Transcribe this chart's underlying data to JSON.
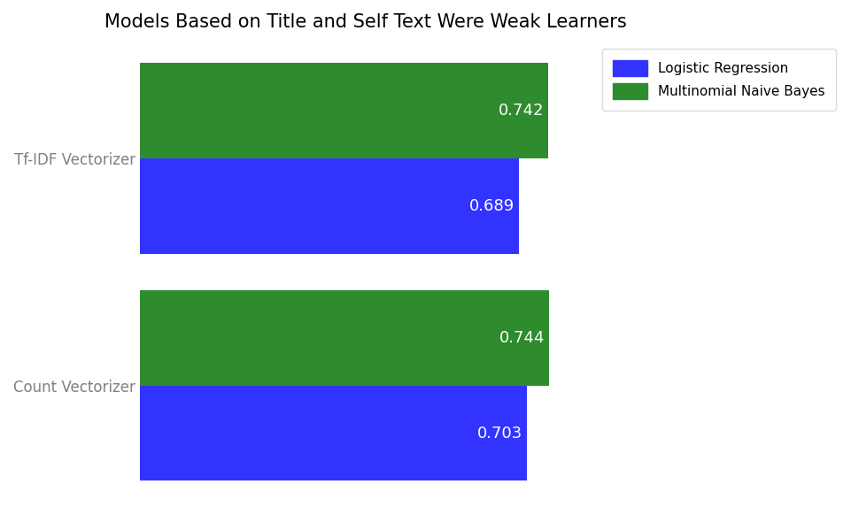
{
  "title": "Models Based on Title and Self Text Were Weak Learners",
  "categories": [
    "Tf-IDF Vectorizer",
    "Count Vectorizer"
  ],
  "values": {
    "Tf-IDF Vectorizer": {
      "Multinomial Naive Bayes": 0.742,
      "Logistic Regression": 0.689
    },
    "Count Vectorizer": {
      "Multinomial Naive Bayes": 0.744,
      "Logistic Regression": 0.703
    }
  },
  "colors": {
    "Logistic Regression": "#3333ff",
    "Multinomial Naive Bayes": "#2e8b2e"
  },
  "bar_height": 0.42,
  "xlim": [
    0,
    0.82
  ],
  "title_fontsize": 15,
  "label_fontsize": 12,
  "value_fontsize": 13,
  "background_color": "#ffffff"
}
